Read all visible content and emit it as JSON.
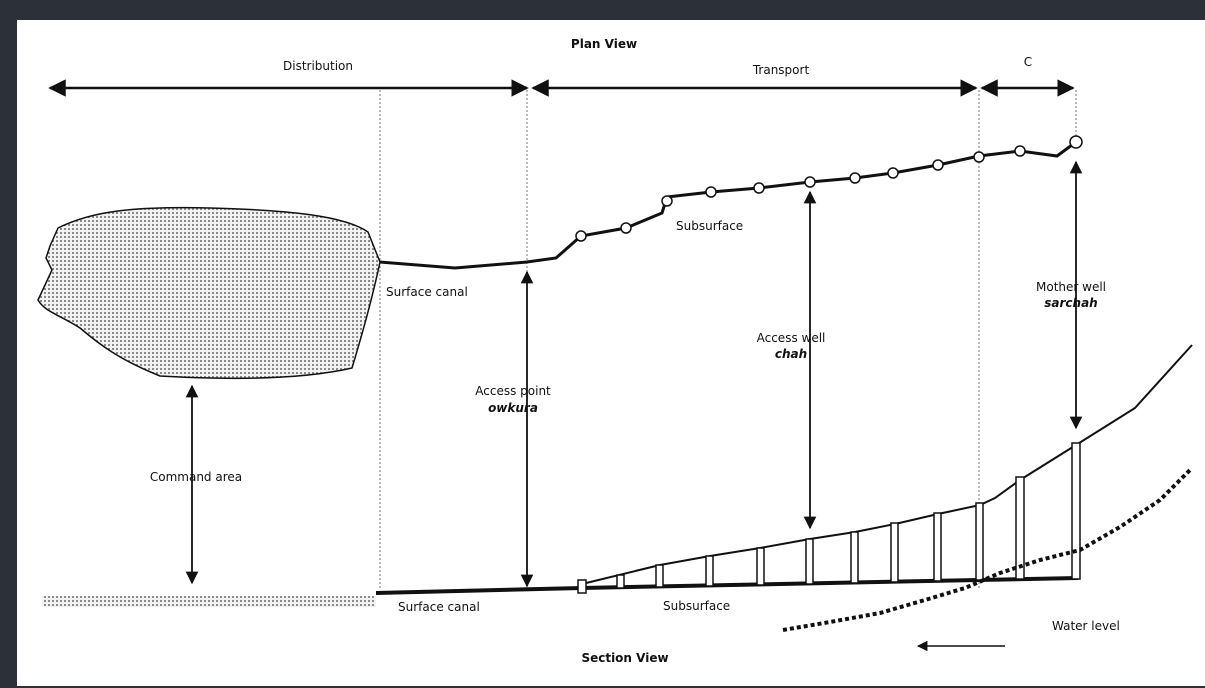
{
  "titles": {
    "plan": "Plan View",
    "section": "Section View"
  },
  "zones": {
    "distribution": "Distribution",
    "transport": "Transport",
    "c": "C"
  },
  "labels": {
    "surface_canal_plan": "Surface canal",
    "subsurface_plan": "Subsurface",
    "command_area": "Command area",
    "access_point": "Access point",
    "access_point_local": "owkura",
    "access_well": "Access well",
    "access_well_local": "chah",
    "mother_well": "Mother well",
    "mother_well_local": "sarchah",
    "surface_canal_section": "Surface canal",
    "subsurface_section": "Subsurface",
    "water_level": "Water level"
  },
  "colors": {
    "background": "#ffffff",
    "frame": "#2b3137",
    "ink": "#111111",
    "fill": "#bcbcbc"
  }
}
